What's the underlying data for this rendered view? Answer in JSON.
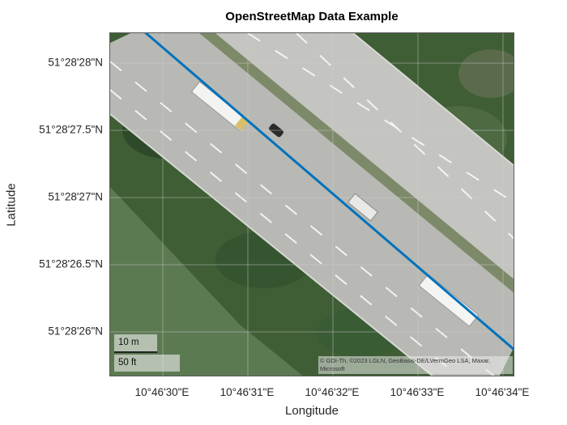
{
  "title": "OpenStreetMap Data Example",
  "axes": {
    "xlabel": "Longitude",
    "ylabel": "Latitude",
    "yticks": [
      "51°28'28\"N",
      "51°28'27.5\"N",
      "51°28'27\"N",
      "51°28'26.5\"N",
      "51°28'26\"N"
    ],
    "xticks": [
      "10°46'30\"E",
      "10°46'31\"E",
      "10°46'32\"E",
      "10°46'33\"E",
      "10°46'34\"E"
    ]
  },
  "scale": {
    "metric": "10 m",
    "imperial": "50 ft"
  },
  "attribution": "© GDI-Th, ©2023 LGLN, GeoBasis-DE/LVermGeo LSA, Maxar, Microsoft",
  "basemap": "satellite",
  "route_color": "#0072BD",
  "grid": true
}
